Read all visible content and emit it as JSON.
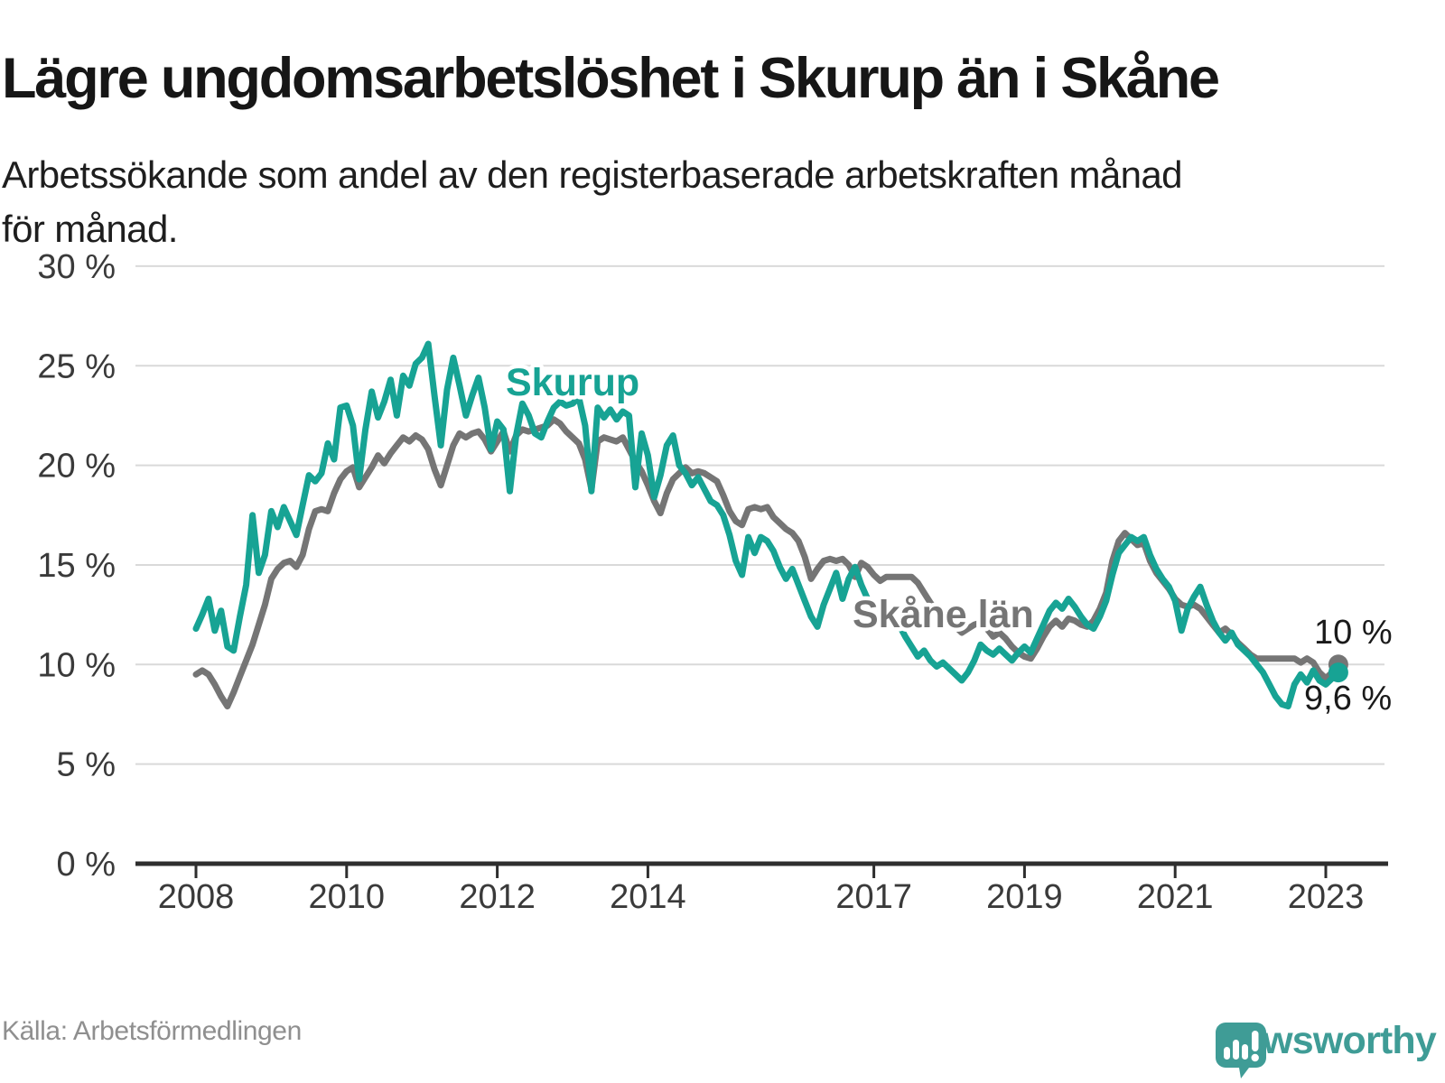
{
  "header": {
    "title": "Lägre ungdomsarbetslöshet i Skurup än i Skåne",
    "subtitle": "Arbetssökande som andel av den registerbaserade arbetskraften månad\nför månad."
  },
  "footer": {
    "source": "Källa: Arbetsförmedlingen",
    "brand": "Newsworthy"
  },
  "colors": {
    "skurup": "#17a394",
    "skane": "#757575",
    "grid": "#d9d9d9",
    "axis": "#2e2e2e",
    "tick_text": "#3a3a3a",
    "end_label_text": "#1a1a1a",
    "logo_teal": "#3f9c96"
  },
  "chart_data": {
    "type": "line",
    "title": "Lägre ungdomsarbetslöshet i Skurup än i Skåne",
    "xlabel": "",
    "ylabel": "Arbetssökande som andel av den registerbaserade arbetskraften",
    "x_start_year": 2008,
    "x_start_month": 1,
    "points_per_year": 12,
    "x_ticks": [
      2008,
      2010,
      2012,
      2014,
      2017,
      2019,
      2021,
      2023
    ],
    "ylim": [
      0,
      30
    ],
    "y_ticks": [
      0,
      5,
      10,
      15,
      20,
      25,
      30
    ],
    "y_tick_suffix": " %",
    "grid": true,
    "legend_position": "inline-labels",
    "series": [
      {
        "name": "Skåne län",
        "color": "#757575",
        "end_label": "10 %",
        "end_value": 10.0,
        "values": [
          9.5,
          9.7,
          9.5,
          9.0,
          8.4,
          7.9,
          8.6,
          9.4,
          10.2,
          11.0,
          12.0,
          13.0,
          14.3,
          14.8,
          15.1,
          15.2,
          14.9,
          15.5,
          16.8,
          17.7,
          17.8,
          17.7,
          18.6,
          19.3,
          19.7,
          19.9,
          18.9,
          19.4,
          19.9,
          20.5,
          20.1,
          20.6,
          21.0,
          21.4,
          21.2,
          21.5,
          21.3,
          20.8,
          19.8,
          19.0,
          20.0,
          21.0,
          21.6,
          21.4,
          21.6,
          21.7,
          21.3,
          20.7,
          21.2,
          21.7,
          20.7,
          21.5,
          21.8,
          21.7,
          21.8,
          21.9,
          22.0,
          22.3,
          22.1,
          21.7,
          21.4,
          21.1,
          20.3,
          18.8,
          21.2,
          21.4,
          21.3,
          21.2,
          21.4,
          20.8,
          20.2,
          19.7,
          19.0,
          18.2,
          17.6,
          18.6,
          19.3,
          19.6,
          19.9,
          19.6,
          19.7,
          19.6,
          19.4,
          19.2,
          18.5,
          17.7,
          17.2,
          17.0,
          17.8,
          17.9,
          17.8,
          17.9,
          17.4,
          17.1,
          16.8,
          16.6,
          16.2,
          15.4,
          14.3,
          14.8,
          15.2,
          15.3,
          15.2,
          15.3,
          15.0,
          14.4,
          15.1,
          14.9,
          14.5,
          14.2,
          14.4,
          14.4,
          14.4,
          14.4,
          14.4,
          14.1,
          13.6,
          13.1,
          12.7,
          12.4,
          12.1,
          11.9,
          11.6,
          11.8,
          12.0,
          12.1,
          11.8,
          11.4,
          11.6,
          11.3,
          10.9,
          10.6,
          10.4,
          10.3,
          10.8,
          11.4,
          11.9,
          12.2,
          11.9,
          12.3,
          12.2,
          12.0,
          11.9,
          12.2,
          12.8,
          13.6,
          15.2,
          16.2,
          16.6,
          16.3,
          16.0,
          16.1,
          15.2,
          14.6,
          14.2,
          13.8,
          13.3,
          13.0,
          12.9,
          13.0,
          12.8,
          12.4,
          12.0,
          11.6,
          11.8,
          11.5,
          11.1,
          10.8,
          10.5,
          10.3,
          10.3,
          10.3,
          10.3,
          10.3,
          10.3,
          10.3,
          10.1,
          10.3,
          10.1,
          9.6,
          9.3,
          9.6,
          10.0
        ]
      },
      {
        "name": "Skurup",
        "color": "#17a394",
        "end_label": "9,6 %",
        "end_value": 9.6,
        "values": [
          11.8,
          12.5,
          13.3,
          11.7,
          12.7,
          10.9,
          10.7,
          12.4,
          14.0,
          17.5,
          14.6,
          15.5,
          17.7,
          16.9,
          17.9,
          17.2,
          16.5,
          18.0,
          19.5,
          19.2,
          19.6,
          21.1,
          20.3,
          22.9,
          23.0,
          22.0,
          19.3,
          21.8,
          23.7,
          22.4,
          23.2,
          24.3,
          22.5,
          24.5,
          24.0,
          25.1,
          25.4,
          26.1,
          23.5,
          21.0,
          23.8,
          25.4,
          24.0,
          22.5,
          23.5,
          24.4,
          22.9,
          20.8,
          22.2,
          21.8,
          18.7,
          21.5,
          23.1,
          22.5,
          21.6,
          21.4,
          22.2,
          22.9,
          23.2,
          23.0,
          23.1,
          23.4,
          22.0,
          18.7,
          22.9,
          22.4,
          22.8,
          22.3,
          22.7,
          22.5,
          18.9,
          21.6,
          20.5,
          18.4,
          19.5,
          21.0,
          21.5,
          20.0,
          19.6,
          19.0,
          19.4,
          18.8,
          18.2,
          18.0,
          17.5,
          16.5,
          15.2,
          14.5,
          16.4,
          15.6,
          16.4,
          16.2,
          15.7,
          14.9,
          14.3,
          14.8,
          14.0,
          13.2,
          12.4,
          11.9,
          13.0,
          13.8,
          14.6,
          13.3,
          14.3,
          14.9,
          14.0,
          13.3,
          13.1,
          12.7,
          13.0,
          12.5,
          12.0,
          11.4,
          10.9,
          10.4,
          10.7,
          10.2,
          9.9,
          10.1,
          9.8,
          9.5,
          9.2,
          9.6,
          10.2,
          11.0,
          10.7,
          10.5,
          10.8,
          10.5,
          10.2,
          10.6,
          10.9,
          10.6,
          11.3,
          12.0,
          12.7,
          13.1,
          12.8,
          13.3,
          12.9,
          12.4,
          12.0,
          11.8,
          12.4,
          13.2,
          14.5,
          15.6,
          16.0,
          16.4,
          16.2,
          16.4,
          15.5,
          14.8,
          14.3,
          13.9,
          13.2,
          11.7,
          12.8,
          13.4,
          13.9,
          13.0,
          12.2,
          11.6,
          11.2,
          11.6,
          11.0,
          10.7,
          10.4,
          10.0,
          9.6,
          9.0,
          8.4,
          8.0,
          7.9,
          9.0,
          9.5,
          9.1,
          9.7,
          9.2,
          9.0,
          9.3,
          9.6
        ]
      }
    ]
  }
}
